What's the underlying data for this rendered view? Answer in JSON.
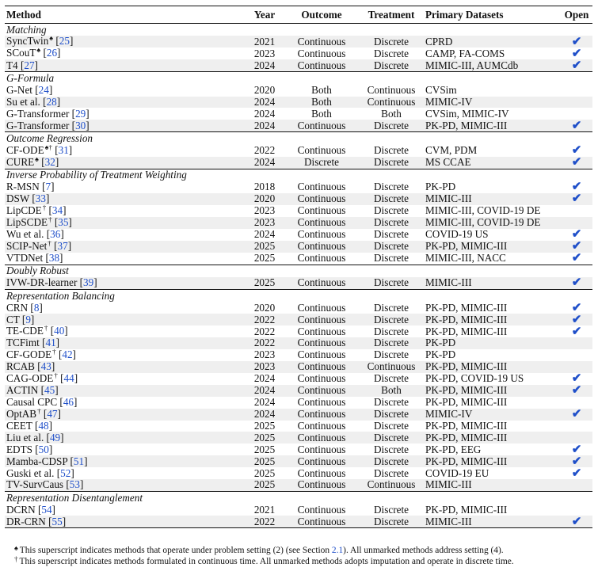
{
  "headers": {
    "method": "Method",
    "year": "Year",
    "outcome": "Outcome",
    "treatment": "Treatment",
    "datasets": "Primary Datasets",
    "open": "Open"
  },
  "check_glyph": "✔",
  "groups": [
    {
      "category": "Matching",
      "rows": [
        {
          "name": "SyncTwin",
          "sup": "♠",
          "ref": "25",
          "year": "2021",
          "outcome": "Continuous",
          "treatment": "Discrete",
          "datasets": "CPRD",
          "open": true
        },
        {
          "name": "SCouT",
          "sup": "♠",
          "ref": "26",
          "year": "2023",
          "outcome": "Continuous",
          "treatment": "Discrete",
          "datasets": "CAMP, FA-COMS",
          "open": true
        },
        {
          "name": "T4",
          "sup": "",
          "ref": "27",
          "year": "2024",
          "outcome": "Continuous",
          "treatment": "Discrete",
          "datasets": "MIMIC-III, AUMCdb",
          "open": true
        }
      ]
    },
    {
      "category": "G-Formula",
      "rows": [
        {
          "name": "G-Net",
          "sup": "",
          "ref": "24",
          "year": "2020",
          "outcome": "Both",
          "treatment": "Continuous",
          "datasets": "CVSim",
          "open": false
        },
        {
          "name": "Su et al.",
          "sup": "",
          "ref": "28",
          "year": "2024",
          "outcome": "Both",
          "treatment": "Continuous",
          "datasets": "MIMIC-IV",
          "open": false
        },
        {
          "name": "G-Transformer",
          "sup": "",
          "ref": "29",
          "year": "2024",
          "outcome": "Both",
          "treatment": "Both",
          "datasets": "CVSim, MIMIC-IV",
          "open": false
        },
        {
          "name": "G-Transformer",
          "sup": "",
          "ref": "30",
          "year": "2024",
          "outcome": "Continuous",
          "treatment": "Discrete",
          "datasets": "PK-PD, MIMIC-III",
          "open": true
        }
      ]
    },
    {
      "category": "Outcome Regression",
      "rows": [
        {
          "name": "CF-ODE",
          "sup": "♠†",
          "ref": "31",
          "year": "2022",
          "outcome": "Continuous",
          "treatment": "Discrete",
          "datasets": "CVM, PDM",
          "open": true
        },
        {
          "name": "CURE",
          "sup": "♠",
          "ref": "32",
          "year": "2024",
          "outcome": "Discrete",
          "treatment": "Discrete",
          "datasets": "MS CCAE",
          "open": true
        }
      ]
    },
    {
      "category": "Inverse Probability of Treatment Weighting",
      "rows": [
        {
          "name": "R-MSN",
          "sup": "",
          "ref": "7",
          "year": "2018",
          "outcome": "Continuous",
          "treatment": "Discrete",
          "datasets": "PK-PD",
          "open": true
        },
        {
          "name": "DSW",
          "sup": "",
          "ref": "33",
          "year": "2020",
          "outcome": "Continuous",
          "treatment": "Discrete",
          "datasets": "MIMIC-III",
          "open": true
        },
        {
          "name": "LipCDE",
          "sup": "†",
          "ref": "34",
          "year": "2023",
          "outcome": "Continuous",
          "treatment": "Discrete",
          "datasets": "MIMIC-III, COVID-19 DE",
          "open": false
        },
        {
          "name": "LipSCDE",
          "sup": "†",
          "ref": "35",
          "year": "2023",
          "outcome": "Continuous",
          "treatment": "Discrete",
          "datasets": "MIMIC-III, COVID-19 DE",
          "open": false
        },
        {
          "name": "Wu et al.",
          "sup": "",
          "ref": "36",
          "year": "2024",
          "outcome": "Continuous",
          "treatment": "Discrete",
          "datasets": "COVID-19 US",
          "open": true
        },
        {
          "name": "SCIP-Net",
          "sup": "†",
          "ref": "37",
          "year": "2025",
          "outcome": "Continuous",
          "treatment": "Discrete",
          "datasets": "PK-PD, MIMIC-III",
          "open": true
        },
        {
          "name": "VTDNet",
          "sup": "",
          "ref": "38",
          "year": "2025",
          "outcome": "Continuous",
          "treatment": "Discrete",
          "datasets": "MIMIC-III, NACC",
          "open": true
        }
      ]
    },
    {
      "category": "Doubly Robust",
      "rows": [
        {
          "name": "IVW-DR-learner",
          "sup": "",
          "ref": "39",
          "year": "2025",
          "outcome": "Continuous",
          "treatment": "Discrete",
          "datasets": "MIMIC-III",
          "open": true
        }
      ]
    },
    {
      "category": "Representation Balancing",
      "rows": [
        {
          "name": "CRN",
          "sup": "",
          "ref": "8",
          "year": "2020",
          "outcome": "Continuous",
          "treatment": "Discrete",
          "datasets": "PK-PD, MIMIC-III",
          "open": true
        },
        {
          "name": "CT",
          "sup": "",
          "ref": "9",
          "year": "2022",
          "outcome": "Continuous",
          "treatment": "Discrete",
          "datasets": "PK-PD, MIMIC-III",
          "open": true
        },
        {
          "name": "TE-CDE",
          "sup": "†",
          "ref": "40",
          "year": "2022",
          "outcome": "Continuous",
          "treatment": "Discrete",
          "datasets": "PK-PD, MIMIC-III",
          "open": true
        },
        {
          "name": "TCFimt",
          "sup": "",
          "ref": "41",
          "year": "2022",
          "outcome": "Continuous",
          "treatment": "Discrete",
          "datasets": "PK-PD",
          "open": false
        },
        {
          "name": "CF-GODE",
          "sup": "†",
          "ref": "42",
          "year": "2023",
          "outcome": "Continuous",
          "treatment": "Discrete",
          "datasets": "PK-PD",
          "open": false
        },
        {
          "name": "RCAB",
          "sup": "",
          "ref": "43",
          "year": "2023",
          "outcome": "Continuous",
          "treatment": "Continuous",
          "datasets": "PK-PD, MIMIC-III",
          "open": false
        },
        {
          "name": "CAG-ODE",
          "sup": "†",
          "ref": "44",
          "year": "2024",
          "outcome": "Continuous",
          "treatment": "Discrete",
          "datasets": "PK-PD, COVID-19 US",
          "open": true
        },
        {
          "name": "ACTIN",
          "sup": "",
          "ref": "45",
          "year": "2024",
          "outcome": "Continuous",
          "treatment": "Both",
          "datasets": "PK-PD, MIMIC-III",
          "open": true
        },
        {
          "name": "Causal CPC",
          "sup": "",
          "ref": "46",
          "year": "2024",
          "outcome": "Continuous",
          "treatment": "Discrete",
          "datasets": "PK-PD, MIMIC-III",
          "open": false
        },
        {
          "name": "OptAB",
          "sup": "†",
          "ref": "47",
          "year": "2024",
          "outcome": "Continuous",
          "treatment": "Discrete",
          "datasets": "MIMIC-IV",
          "open": true
        },
        {
          "name": "CEET",
          "sup": "",
          "ref": "48",
          "year": "2025",
          "outcome": "Continuous",
          "treatment": "Discrete",
          "datasets": "PK-PD, MIMIC-III",
          "open": false
        },
        {
          "name": "Liu et al.",
          "sup": "",
          "ref": "49",
          "year": "2025",
          "outcome": "Continuous",
          "treatment": "Discrete",
          "datasets": "PK-PD, MIMIC-III",
          "open": false
        },
        {
          "name": "EDTS",
          "sup": "",
          "ref": "50",
          "year": "2025",
          "outcome": "Continuous",
          "treatment": "Discrete",
          "datasets": "PK-PD, EEG",
          "open": true
        },
        {
          "name": "Mamba-CDSP",
          "sup": "",
          "ref": "51",
          "year": "2025",
          "outcome": "Continuous",
          "treatment": "Discrete",
          "datasets": "PK-PD, MIMIC-III",
          "open": true
        },
        {
          "name": "Guski et al.",
          "sup": "",
          "ref": "52",
          "year": "2025",
          "outcome": "Continuous",
          "treatment": "Discrete",
          "datasets": "COVID-19 EU",
          "open": true
        },
        {
          "name": "TV-SurvCaus",
          "sup": "",
          "ref": "53",
          "year": "2025",
          "outcome": "Continuous",
          "treatment": "Continuous",
          "datasets": "MIMIC-III",
          "open": false
        }
      ]
    },
    {
      "category": "Representation Disentanglement",
      "rows": [
        {
          "name": "DCRN",
          "sup": "",
          "ref": "54",
          "year": "2021",
          "outcome": "Continuous",
          "treatment": "Discrete",
          "datasets": "PK-PD, MIMIC-III",
          "open": false
        },
        {
          "name": "DR-CRN",
          "sup": "",
          "ref": "55",
          "year": "2022",
          "outcome": "Continuous",
          "treatment": "Discrete",
          "datasets": "MIMIC-III",
          "open": true
        }
      ]
    }
  ],
  "footnotes": [
    {
      "mark": "♠",
      "pre": "This superscript indicates methods that operate under problem setting (2) (see Section ",
      "link": "2.1",
      "post": "). All unmarked methods address setting (4)."
    },
    {
      "mark": "†",
      "pre": "This superscript indicates methods formulated in continuous time. All unmarked methods adopts imputation and operate in discrete time.",
      "link": "",
      "post": ""
    }
  ]
}
